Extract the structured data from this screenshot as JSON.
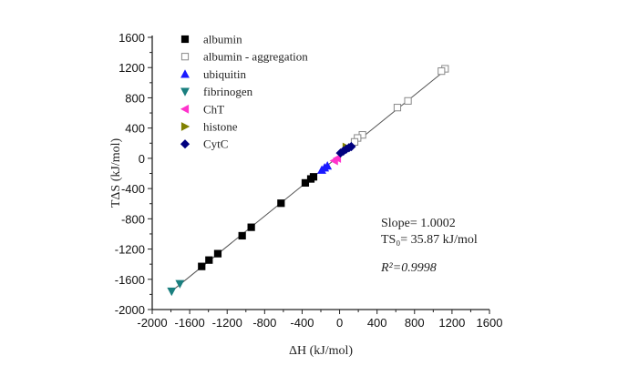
{
  "chart_data": {
    "type": "scatter",
    "title": "",
    "xlabel": "ΔH (kJ/mol)",
    "ylabel": "TΔS (kJ/mol)",
    "xlim": [
      -2000,
      1600
    ],
    "ylim": [
      -2000,
      1600
    ],
    "xticks": [
      -2000,
      -1600,
      -1200,
      -800,
      -400,
      0,
      400,
      800,
      1200,
      1600
    ],
    "yticks": [
      -2000,
      -1600,
      -1200,
      -800,
      -400,
      0,
      400,
      800,
      1200,
      1600
    ],
    "grid": false,
    "legend_position": "top-left",
    "series": [
      {
        "name": "albumin",
        "marker": "square",
        "color": "#000000",
        "filled": true,
        "points": [
          [
            -1472,
            -1430
          ],
          [
            -1394,
            -1346
          ],
          [
            -1300,
            -1261
          ],
          [
            -1040,
            -1024
          ],
          [
            -943,
            -912
          ],
          [
            -625,
            -594
          ],
          [
            -366,
            -325
          ],
          [
            -307,
            -273
          ],
          [
            -278,
            -245
          ]
        ]
      },
      {
        "name": "albumin - aggregation",
        "marker": "square",
        "color": "#888888",
        "filled": false,
        "points": [
          [
            1126,
            1184
          ],
          [
            1087,
            1153
          ],
          [
            730,
            759
          ],
          [
            617,
            671
          ],
          [
            244,
            310
          ],
          [
            192,
            269
          ],
          [
            160,
            217
          ]
        ]
      },
      {
        "name": "ubiquitin",
        "marker": "triangle-up",
        "color": "#1a1aff",
        "filled": true,
        "points": [
          [
            -190,
            -155
          ],
          [
            -160,
            -125
          ],
          [
            -130,
            -100
          ]
        ]
      },
      {
        "name": "fibrinogen",
        "marker": "triangle-down",
        "color": "#1a7f7f",
        "filled": true,
        "points": [
          [
            -1793,
            -1759
          ],
          [
            -1705,
            -1659
          ]
        ]
      },
      {
        "name": "ChT",
        "marker": "triangle-left",
        "color": "#ff33cc",
        "filled": true,
        "points": [
          [
            -57,
            -32
          ],
          [
            -25,
            0
          ]
        ]
      },
      {
        "name": "histone",
        "marker": "triangle-right",
        "color": "#808000",
        "filled": true,
        "points": [
          [
            72,
            148
          ]
        ]
      },
      {
        "name": "CytC",
        "marker": "diamond",
        "color": "#00007f",
        "filled": true,
        "points": [
          [
            10,
            70
          ],
          [
            40,
            95
          ],
          [
            70,
            120
          ],
          [
            100,
            140
          ],
          [
            125,
            155
          ]
        ]
      }
    ],
    "fit_line": {
      "slope": 1.0002,
      "intercept": 35.87,
      "x_range": [
        -1800,
        1150
      ],
      "color": "#555555"
    },
    "annotations": {
      "slope": "Slope= 1.0002",
      "ts0": "TS₀= 35.87 kJ/mol",
      "r2": "R²=0.9998"
    }
  }
}
